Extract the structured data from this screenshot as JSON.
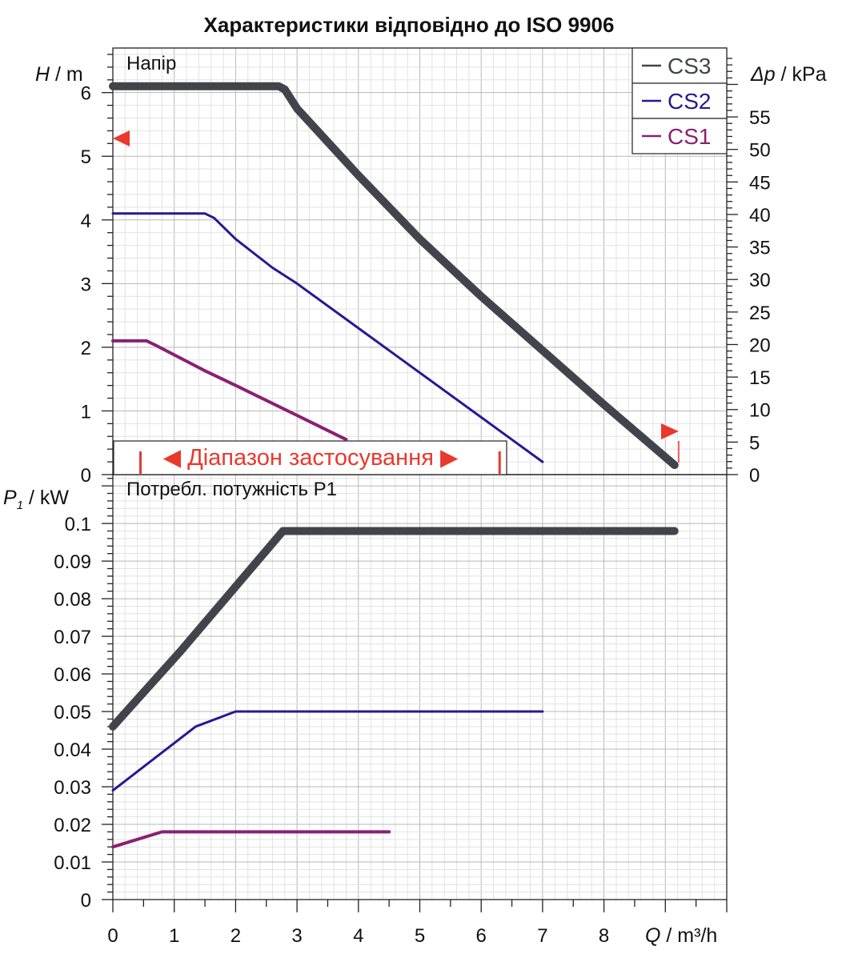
{
  "chart_data": {
    "type": "line",
    "title": "Характеристики відповідно до ISO 9906",
    "x_axis": {
      "label_var": "Q",
      "label_unit": " / m³/h",
      "range": [
        0,
        10
      ],
      "ticks": [
        0,
        1,
        2,
        3,
        4,
        5,
        6,
        7,
        8
      ]
    },
    "head_panel": {
      "label": "Напір",
      "y_label_var": "H",
      "y_label_unit": " / m",
      "y_range": [
        0,
        6.7
      ],
      "y_ticks": [
        0,
        1,
        2,
        3,
        4,
        5,
        6
      ],
      "y2_label_var": "Δp",
      "y2_label_unit": " / kPa",
      "y2_ticks": [
        0,
        5,
        10,
        15,
        20,
        25,
        30,
        35,
        40,
        45,
        50,
        55
      ],
      "series": [
        {
          "name": "CS3",
          "color": "#41454b",
          "x": [
            0,
            2.7,
            2.8,
            3.0,
            4.0,
            5.0,
            6.0,
            7.0,
            8.0,
            9.15
          ],
          "y": [
            6.1,
            6.1,
            6.05,
            5.75,
            4.7,
            3.7,
            2.8,
            1.95,
            1.1,
            0.15
          ]
        },
        {
          "name": "CS2",
          "color": "#2c1693",
          "x": [
            0,
            1.5,
            1.65,
            2.0,
            2.6,
            3.0,
            4.0,
            5.0,
            6.0,
            7.0
          ],
          "y": [
            4.1,
            4.1,
            4.03,
            3.7,
            3.25,
            3.0,
            2.3,
            1.6,
            0.9,
            0.2
          ]
        },
        {
          "name": "CS1",
          "color": "#8b1f73",
          "x": [
            0,
            0.55,
            0.7,
            1.0,
            1.5,
            2.0,
            3.0,
            3.8
          ],
          "y": [
            2.1,
            2.1,
            2.03,
            1.88,
            1.63,
            1.4,
            0.93,
            0.55
          ]
        }
      ]
    },
    "power_panel": {
      "label": "Потребл. потужність P1",
      "y_label_var": "P",
      "y_label_sub": "1",
      "y_label_unit": " / kW",
      "y_range": [
        0,
        0.113
      ],
      "y_ticks": [
        "0",
        "0.01",
        "0.02",
        "0.03",
        "0.04",
        "0.05",
        "0.06",
        "0.07",
        "0.08",
        "0.09",
        "0.1"
      ],
      "series": [
        {
          "name": "CS3",
          "color": "#41454b",
          "x": [
            0,
            1.1,
            2.77,
            9.15
          ],
          "y": [
            0.046,
            0.066,
            0.098,
            0.098
          ]
        },
        {
          "name": "CS2",
          "color": "#2c1693",
          "x": [
            0,
            1.35,
            2.0,
            7.0
          ],
          "y": [
            0.029,
            0.046,
            0.05,
            0.05
          ]
        },
        {
          "name": "CS1",
          "color": "#8b1f73",
          "x": [
            0,
            0.8,
            4.5
          ],
          "y": [
            0.014,
            0.018,
            0.018
          ]
        }
      ]
    },
    "legend": {
      "placement": "top-right",
      "entries": [
        {
          "label": "CS3",
          "color": "#41454b"
        },
        {
          "label": "CS2",
          "color": "#2c1693"
        },
        {
          "label": "CS1",
          "color": "#8b1f73"
        }
      ]
    },
    "application_range": {
      "label": "Діапазон застосування",
      "x_min": 0.45,
      "x_max": 6.3,
      "color": "#e8392c"
    },
    "grid": true
  }
}
